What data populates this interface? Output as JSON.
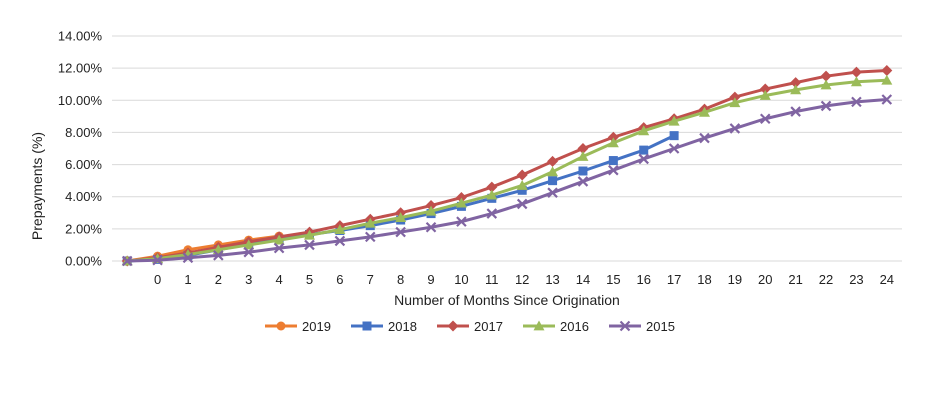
{
  "chart_data": {
    "type": "line",
    "title": "",
    "xlabel": "Number of Months Since Origination",
    "ylabel": "Prepayments (%)",
    "x_categories": [
      "",
      "0",
      "1",
      "2",
      "3",
      "4",
      "5",
      "6",
      "7",
      "8",
      "9",
      "10",
      "11",
      "12",
      "13",
      "14",
      "15",
      "16",
      "17",
      "18",
      "19",
      "20",
      "21",
      "22",
      "23",
      "24"
    ],
    "ylim": [
      0,
      14
    ],
    "y_ticks": [
      0,
      2,
      4,
      6,
      8,
      10,
      12,
      14
    ],
    "y_tick_labels": [
      "0.00%",
      "2.00%",
      "4.00%",
      "6.00%",
      "8.00%",
      "10.00%",
      "12.00%",
      "14.00%"
    ],
    "grid": "horizontal",
    "legend_position": "bottom",
    "series": [
      {
        "name": "2019",
        "color": "#ED7D31",
        "marker": "circle",
        "values": [
          0.0,
          0.3,
          0.7,
          1.0,
          1.3,
          1.55
        ]
      },
      {
        "name": "2018",
        "color": "#4472C4",
        "marker": "square",
        "values": [
          0.0,
          0.1,
          0.35,
          0.7,
          1.05,
          1.35,
          1.65,
          1.9,
          2.2,
          2.55,
          2.95,
          3.4,
          3.9,
          4.4,
          5.0,
          5.6,
          6.25,
          6.9,
          7.8
        ]
      },
      {
        "name": "2017",
        "color": "#C0504D",
        "marker": "diamond",
        "values": [
          0.0,
          0.2,
          0.5,
          0.85,
          1.2,
          1.5,
          1.8,
          2.2,
          2.6,
          3.0,
          3.45,
          3.95,
          4.6,
          5.35,
          6.2,
          7.0,
          7.7,
          8.3,
          8.85,
          9.45,
          10.2,
          10.7,
          11.1,
          11.5,
          11.75,
          11.85
        ]
      },
      {
        "name": "2016",
        "color": "#9BBB59",
        "marker": "triangle",
        "values": [
          0.0,
          0.15,
          0.4,
          0.7,
          1.0,
          1.3,
          1.6,
          1.95,
          2.35,
          2.7,
          3.1,
          3.6,
          4.1,
          4.7,
          5.55,
          6.5,
          7.35,
          8.1,
          8.7,
          9.25,
          9.85,
          10.3,
          10.65,
          10.95,
          11.15,
          11.25
        ]
      },
      {
        "name": "2015",
        "color": "#8064A2",
        "marker": "x",
        "values": [
          0.0,
          0.05,
          0.2,
          0.35,
          0.55,
          0.8,
          1.0,
          1.25,
          1.5,
          1.8,
          2.1,
          2.45,
          2.95,
          3.55,
          4.25,
          4.95,
          5.65,
          6.35,
          7.0,
          7.65,
          8.25,
          8.85,
          9.3,
          9.65,
          9.9,
          10.05
        ]
      }
    ]
  }
}
